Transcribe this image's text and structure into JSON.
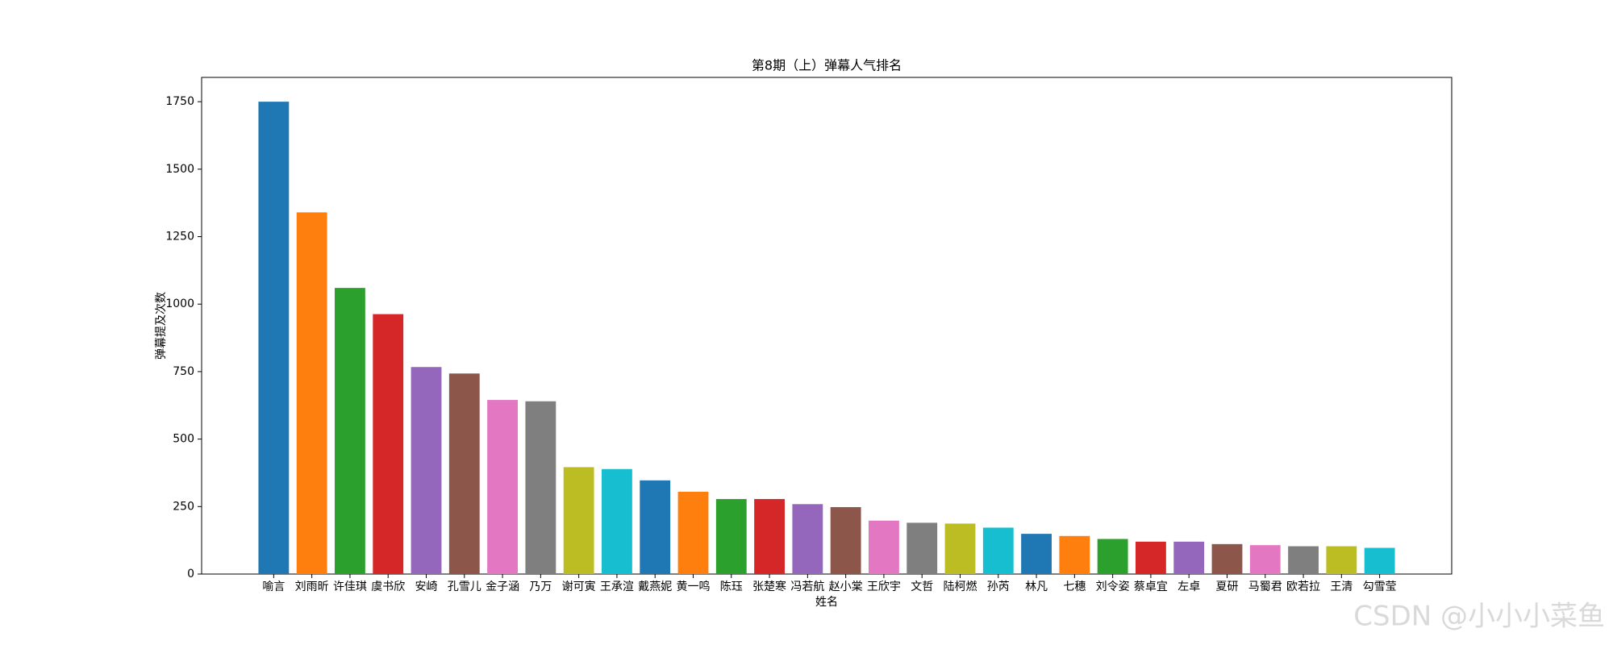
{
  "chart_data": {
    "type": "bar",
    "title": "第8期（上）弹幕人气排名",
    "xlabel": "姓名",
    "ylabel": "弹幕提及次数",
    "categories": [
      "喻言",
      "刘雨昕",
      "许佳琪",
      "虞书欣",
      "安崎",
      "孔雪儿",
      "金子涵",
      "乃万",
      "谢可寅",
      "王承渲",
      "戴燕妮",
      "黄一鸣",
      "陈珏",
      "张楚寒",
      "冯若航",
      "赵小棠",
      "王欣宇",
      "文哲",
      "陆柯燃",
      "孙芮",
      "林凡",
      "七穗",
      "刘令姿",
      "蔡卓宜",
      "左卓",
      "夏研",
      "马蜀君",
      "欧若拉",
      "王清",
      "勾雪莹"
    ],
    "values": [
      1750,
      1340,
      1060,
      963,
      767,
      743,
      645,
      640,
      396,
      389,
      347,
      305,
      278,
      278,
      259,
      248,
      198,
      190,
      187,
      172,
      149,
      141,
      130,
      120,
      120,
      111,
      107,
      103,
      103,
      97
    ],
    "colors": [
      "#1f77b4",
      "#ff7f0e",
      "#2ca02c",
      "#d62728",
      "#9467bd",
      "#8c564b",
      "#e377c2",
      "#7f7f7f",
      "#bcbd22",
      "#17becf"
    ],
    "ylim": [
      0,
      1840
    ],
    "yticks": [
      0,
      250,
      500,
      750,
      1000,
      1250,
      1500,
      1750
    ],
    "grid": false,
    "watermark": "CSDN @小小小菜鱼"
  }
}
